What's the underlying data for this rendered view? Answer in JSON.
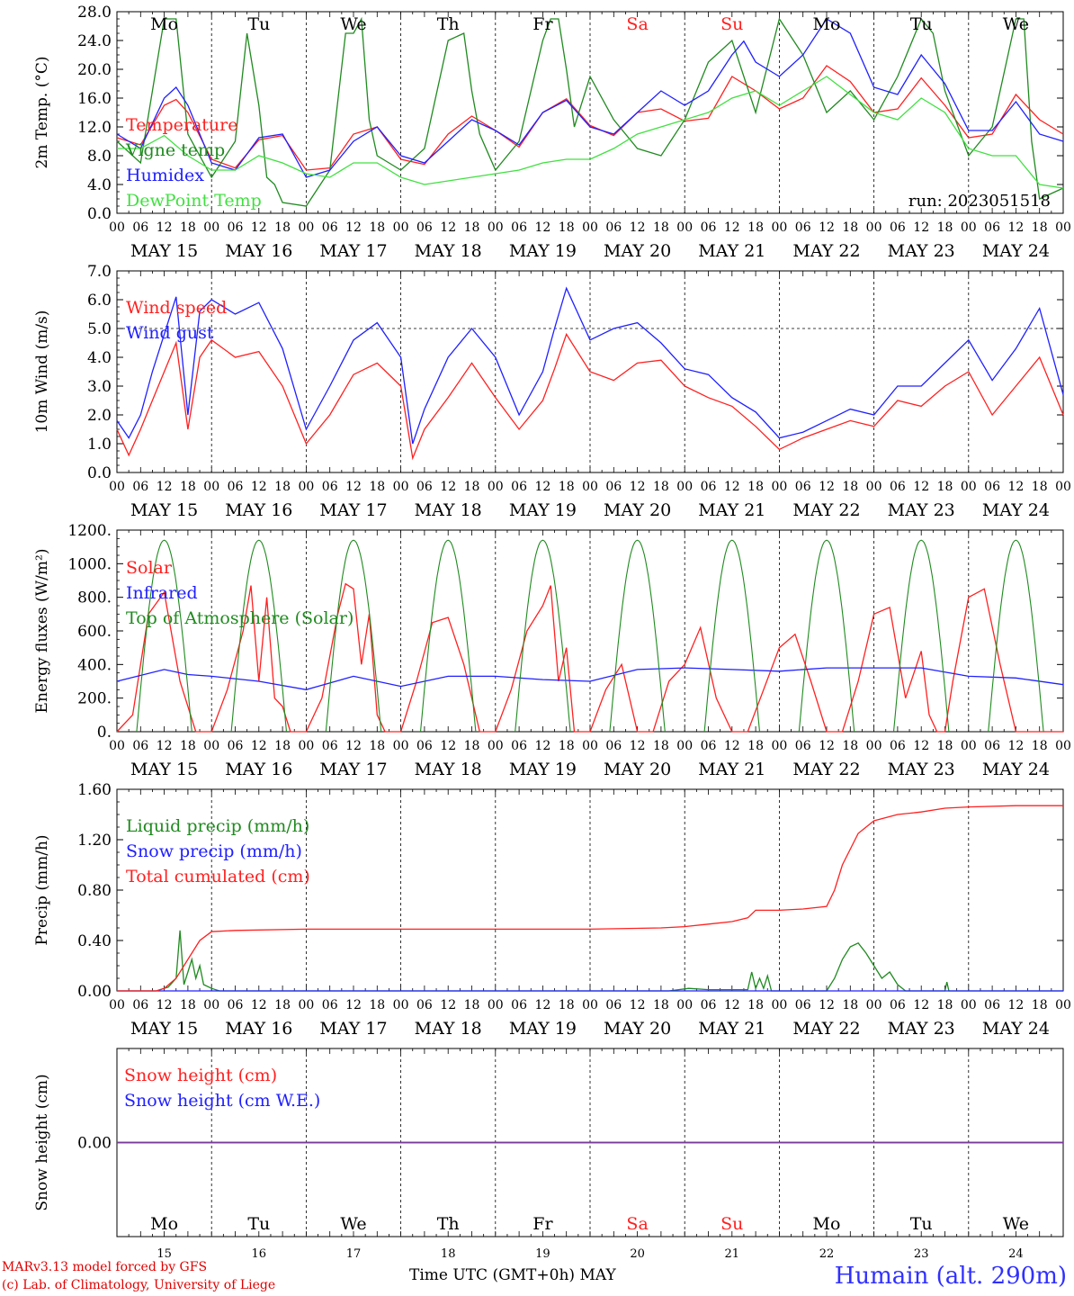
{
  "days": [
    "15",
    "16",
    "17",
    "18",
    "19",
    "20",
    "21",
    "22",
    "23",
    "24"
  ],
  "day_labels": [
    "MAY 15",
    "MAY 16",
    "MAY 17",
    "MAY 18",
    "MAY 19",
    "MAY 20",
    "MAY 21",
    "MAY 22",
    "MAY 23",
    "MAY 24"
  ],
  "weekdays": [
    {
      "name": "Mo",
      "color": "#000000"
    },
    {
      "name": "Tu",
      "color": "#000000"
    },
    {
      "name": "We",
      "color": "#000000"
    },
    {
      "name": "Th",
      "color": "#000000"
    },
    {
      "name": "Fr",
      "color": "#000000"
    },
    {
      "name": "Sa",
      "color": "#ff2020"
    },
    {
      "name": "Su",
      "color": "#ff2020"
    },
    {
      "name": "Mo",
      "color": "#000000"
    },
    {
      "name": "Tu",
      "color": "#000000"
    },
    {
      "name": "We",
      "color": "#000000"
    }
  ],
  "hour_ticks": [
    "00",
    "06",
    "12",
    "18"
  ],
  "footer": {
    "credit_line1": "MARv3.13 model forced by GFS",
    "credit_line2": "(c) Lab. of Climatology, University of Liege",
    "x_title": "Time UTC (GMT+0h)",
    "month": "MAY",
    "station": "Humain (alt. 290m)"
  },
  "chart_data": [
    {
      "type": "line",
      "ylabel": "2m Temp. (°C)",
      "ylim": [
        0,
        28
      ],
      "yticks": [
        "0.0",
        "4.0",
        "8.0",
        "12.0",
        "16.0",
        "20.0",
        "24.0",
        "28.0"
      ],
      "annotation": "run: 2023051518",
      "x_unit": "hours since 2023-05-15 00 UTC",
      "series": [
        {
          "name": "Temperature",
          "color": "#ff2020",
          "x": [
            0,
            6,
            12,
            15,
            18,
            24,
            30,
            36,
            42,
            48,
            54,
            60,
            66,
            72,
            78,
            84,
            90,
            96,
            102,
            108,
            114,
            120,
            126,
            132,
            138,
            144,
            150,
            156,
            162,
            168,
            174,
            180,
            186,
            192,
            198,
            204,
            210,
            216,
            222,
            228,
            234,
            240
          ],
          "y": [
            10.5,
            9.5,
            15,
            15.8,
            14,
            7.5,
            6.3,
            10.2,
            10.8,
            6,
            6.3,
            11,
            12,
            7.5,
            6.8,
            11,
            13.5,
            11.5,
            9.2,
            14,
            15.9,
            12.2,
            10.8,
            14,
            14.5,
            12.8,
            13.2,
            19,
            17,
            14.5,
            16,
            20.5,
            18.3,
            14,
            14.5,
            18.8,
            15,
            10.5,
            11,
            16.5,
            13,
            11
          ]
        },
        {
          "name": "Vigne temp",
          "color": "#208a20",
          "x": [
            0,
            6,
            12,
            15,
            18,
            24,
            30,
            33,
            36,
            38,
            40,
            42,
            48,
            54,
            58,
            60,
            62,
            64,
            66,
            72,
            78,
            84,
            88,
            90,
            92,
            96,
            102,
            108,
            110,
            112,
            114,
            116,
            120,
            126,
            132,
            138,
            144,
            150,
            156,
            162,
            168,
            174,
            180,
            186,
            192,
            198,
            204,
            207,
            210,
            216,
            222,
            228,
            230,
            232,
            234,
            240
          ],
          "y": [
            10,
            7,
            27,
            27,
            11,
            5,
            10,
            25,
            15,
            5,
            4,
            1.5,
            1,
            6,
            25,
            25,
            27,
            13,
            8,
            6,
            9,
            24,
            25,
            17,
            11,
            6,
            10,
            24,
            27,
            27,
            20,
            12,
            19,
            13,
            9,
            8,
            13,
            21,
            24,
            14,
            27,
            22,
            14,
            17,
            13,
            19,
            27,
            25,
            17,
            8,
            12,
            27,
            27,
            10,
            2,
            3.5
          ]
        },
        {
          "name": "Humidex",
          "color": "#2020ff",
          "x": [
            0,
            6,
            12,
            15,
            18,
            24,
            30,
            36,
            42,
            48,
            54,
            60,
            66,
            72,
            78,
            84,
            90,
            96,
            102,
            108,
            114,
            120,
            126,
            132,
            138,
            144,
            150,
            156,
            159,
            162,
            168,
            174,
            180,
            186,
            192,
            198,
            204,
            210,
            216,
            222,
            228,
            234,
            240
          ],
          "y": [
            11,
            9,
            16,
            17.5,
            15,
            7,
            6,
            10.5,
            11,
            5,
            6,
            10,
            12,
            8,
            7,
            10,
            13,
            11.5,
            9.5,
            14,
            15.7,
            12,
            11,
            14,
            17,
            15,
            17,
            22,
            23.9,
            21,
            19,
            22,
            27,
            25,
            17.5,
            16.5,
            22,
            18,
            11.5,
            11.5,
            15.5,
            11,
            10
          ]
        },
        {
          "name": "DewPoint Temp",
          "color": "#40e040",
          "x": [
            0,
            6,
            12,
            18,
            24,
            30,
            36,
            42,
            48,
            54,
            60,
            66,
            72,
            78,
            84,
            90,
            96,
            102,
            108,
            114,
            120,
            126,
            132,
            138,
            144,
            150,
            156,
            162,
            168,
            174,
            180,
            186,
            192,
            198,
            204,
            210,
            216,
            222,
            228,
            234,
            240
          ],
          "y": [
            9,
            9,
            10.8,
            8,
            6,
            6,
            8,
            7,
            5.5,
            5,
            7,
            7,
            5,
            4,
            4.5,
            5,
            5.5,
            6,
            7,
            7.5,
            7.5,
            9,
            11,
            12,
            13,
            14,
            16,
            17,
            15,
            17,
            19,
            16.5,
            14,
            13,
            16,
            14,
            9,
            8,
            8,
            4,
            3.5
          ]
        }
      ]
    },
    {
      "type": "line",
      "ylabel": "10m Wind (m/s)",
      "ylim": [
        0,
        7
      ],
      "yticks": [
        "0.0",
        "1.0",
        "2.0",
        "3.0",
        "4.0",
        "5.0",
        "6.0",
        "7.0"
      ],
      "reference_line": 5.0,
      "x_unit": "hours since 2023-05-15 00 UTC",
      "series": [
        {
          "name": "Wind speed",
          "color": "#ff2020",
          "x": [
            0,
            3,
            6,
            9,
            12,
            15,
            18,
            21,
            24,
            30,
            36,
            42,
            48,
            54,
            60,
            66,
            72,
            75,
            78,
            84,
            90,
            96,
            102,
            108,
            111,
            114,
            120,
            126,
            132,
            138,
            144,
            150,
            156,
            162,
            168,
            174,
            180,
            186,
            192,
            198,
            204,
            210,
            216,
            222,
            228,
            234,
            240
          ],
          "y": [
            1.5,
            0.6,
            1.5,
            2.5,
            3.5,
            4.5,
            1.5,
            4,
            4.6,
            4,
            4.2,
            3,
            1,
            2,
            3.4,
            3.8,
            3,
            0.5,
            1.5,
            2.6,
            3.8,
            2.6,
            1.5,
            2.5,
            3.6,
            4.8,
            3.5,
            3.2,
            3.8,
            3.9,
            3,
            2.6,
            2.3,
            1.6,
            0.8,
            1.2,
            1.5,
            1.8,
            1.6,
            2.5,
            2.3,
            3,
            3.5,
            2,
            3,
            4,
            2
          ]
        },
        {
          "name": "Wind gust",
          "color": "#2020ff",
          "x": [
            0,
            3,
            6,
            9,
            12,
            15,
            18,
            21,
            24,
            30,
            36,
            42,
            48,
            54,
            60,
            66,
            72,
            75,
            78,
            84,
            90,
            96,
            102,
            108,
            111,
            114,
            120,
            126,
            132,
            138,
            144,
            150,
            156,
            162,
            168,
            174,
            180,
            186,
            192,
            198,
            204,
            210,
            216,
            222,
            228,
            234,
            240
          ],
          "y": [
            1.8,
            1.2,
            2,
            3.5,
            4.8,
            6.1,
            2,
            5.6,
            6,
            5.5,
            5.9,
            4.3,
            1.5,
            3,
            4.6,
            5.2,
            4,
            1,
            2.2,
            4,
            5,
            4,
            2,
            3.5,
            5,
            6.4,
            4.6,
            5,
            5.2,
            4.5,
            3.6,
            3.4,
            2.6,
            2.1,
            1.2,
            1.4,
            1.8,
            2.2,
            2,
            3,
            3,
            3.8,
            4.6,
            3.2,
            4.3,
            5.7,
            2.7
          ]
        }
      ]
    },
    {
      "type": "line",
      "ylabel": "Energy fluxes (W/m²)",
      "ylim": [
        0,
        1200
      ],
      "yticks": [
        "0.",
        "200.",
        "400.",
        "600.",
        "800.",
        "1000.",
        "1200."
      ],
      "x_unit": "hours since 2023-05-15 00 UTC",
      "series": [
        {
          "name": "Solar",
          "color": "#ff2020",
          "x": [
            0,
            4,
            8,
            12,
            16,
            20,
            24,
            28,
            32,
            34,
            36,
            38,
            40,
            42,
            44,
            48,
            52,
            56,
            58,
            60,
            62,
            64,
            66,
            68,
            72,
            76,
            80,
            84,
            88,
            92,
            96,
            100,
            104,
            108,
            110,
            112,
            114,
            116,
            120,
            124,
            128,
            132,
            136,
            140,
            144,
            148,
            152,
            156,
            160,
            164,
            168,
            172,
            176,
            180,
            184,
            188,
            192,
            196,
            200,
            204,
            206,
            208,
            210,
            212,
            216,
            220,
            224,
            228,
            232,
            236,
            240
          ],
          "y": [
            0,
            100,
            700,
            830,
            300,
            0,
            0,
            250,
            600,
            870,
            300,
            800,
            200,
            150,
            0,
            0,
            200,
            700,
            880,
            850,
            400,
            700,
            100,
            0,
            0,
            300,
            650,
            680,
            400,
            0,
            0,
            250,
            600,
            750,
            870,
            300,
            500,
            0,
            0,
            250,
            400,
            0,
            0,
            300,
            400,
            620,
            200,
            0,
            0,
            250,
            500,
            580,
            300,
            0,
            0,
            300,
            700,
            740,
            200,
            480,
            100,
            0,
            0,
            300,
            800,
            850,
            400,
            0,
            0,
            0,
            0
          ]
        },
        {
          "name": "Infrared",
          "color": "#2020ff",
          "x": [
            0,
            12,
            18,
            24,
            36,
            48,
            60,
            72,
            84,
            96,
            108,
            120,
            132,
            144,
            156,
            168,
            180,
            192,
            204,
            216,
            228,
            240
          ],
          "y": [
            300,
            370,
            340,
            330,
            300,
            250,
            330,
            270,
            330,
            330,
            310,
            300,
            370,
            380,
            370,
            360,
            380,
            380,
            380,
            330,
            320,
            280
          ]
        },
        {
          "name": "Top of Atmosphere (Solar)",
          "color": "#208a20",
          "type": "daily-arc",
          "rise_hour": 5,
          "set_hour": 19,
          "peak": 1140
        }
      ]
    },
    {
      "type": "line",
      "ylabel": "Precip (mm/h)",
      "ylim": [
        0,
        1.6
      ],
      "yticks": [
        "0.00",
        "0.40",
        "0.80",
        "1.20",
        "1.60"
      ],
      "x_unit": "hours since 2023-05-15 00 UTC",
      "series": [
        {
          "name": "Liquid precip (mm/h)",
          "color": "#208a20",
          "x": [
            0,
            10,
            13,
            15,
            16,
            17,
            18,
            19,
            20,
            21,
            22,
            24,
            26,
            30,
            140,
            145,
            150,
            160,
            161,
            162,
            163,
            164,
            165,
            166,
            180,
            182,
            184,
            186,
            188,
            190,
            192,
            194,
            196,
            198,
            200,
            210,
            210.5,
            211,
            240
          ],
          "y": [
            0,
            0,
            0.03,
            0.1,
            0.48,
            0.05,
            0.15,
            0.25,
            0.1,
            0.2,
            0.05,
            0.02,
            0,
            0,
            0,
            0.02,
            0.01,
            0.01,
            0.15,
            0.02,
            0.1,
            0.02,
            0.12,
            0,
            0,
            0.1,
            0.25,
            0.35,
            0.38,
            0.3,
            0.2,
            0.1,
            0.15,
            0.05,
            0,
            0,
            0.07,
            0,
            0
          ]
        },
        {
          "name": "Snow precip (mm/h)",
          "color": "#2020ff",
          "x": [
            0,
            240
          ],
          "y": [
            0,
            0
          ]
        },
        {
          "name": "Total cumulated (cm)",
          "color": "#ff2020",
          "x": [
            0,
            10,
            12,
            15,
            18,
            21,
            24,
            30,
            48,
            72,
            96,
            120,
            138,
            144,
            150,
            156,
            160,
            162,
            166,
            168,
            174,
            180,
            182,
            184,
            188,
            192,
            198,
            204,
            210,
            216,
            228,
            240
          ],
          "y": [
            0,
            0,
            0.02,
            0.1,
            0.25,
            0.4,
            0.47,
            0.48,
            0.49,
            0.49,
            0.49,
            0.49,
            0.5,
            0.51,
            0.53,
            0.55,
            0.58,
            0.64,
            0.64,
            0.64,
            0.65,
            0.67,
            0.8,
            1.0,
            1.25,
            1.35,
            1.4,
            1.42,
            1.45,
            1.46,
            1.47,
            1.47
          ]
        }
      ]
    },
    {
      "type": "line",
      "ylabel": "Snow height (cm)",
      "ytick": "0.00",
      "series": [
        {
          "name": "Snow height (cm)",
          "color": "#ff2020",
          "x": [
            0,
            240
          ],
          "y": [
            0,
            0
          ]
        },
        {
          "name": "Snow height (cm W.E.)",
          "color": "#2020ff",
          "x": [
            0,
            240
          ],
          "y": [
            0,
            0
          ]
        }
      ]
    }
  ]
}
